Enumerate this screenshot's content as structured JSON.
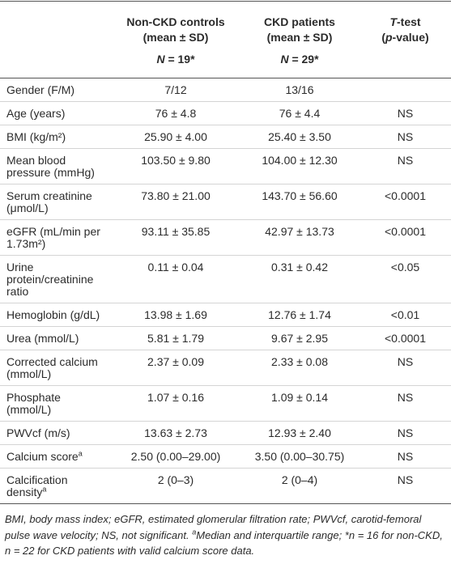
{
  "table": {
    "header": [
      {
        "lines": []
      },
      {
        "lines": [
          [
            {
              "t": "Non-CKD controls"
            }
          ],
          [
            {
              "t": "(mean ± SD)"
            }
          ],
          [
            {
              "t": "N",
              "i": true
            },
            {
              "t": " = 19*"
            }
          ]
        ]
      },
      {
        "lines": [
          [
            {
              "t": "CKD patients"
            }
          ],
          [
            {
              "t": "(mean ± SD)"
            }
          ],
          [
            {
              "t": "N",
              "i": true
            },
            {
              "t": " = 29*"
            }
          ]
        ]
      },
      {
        "lines": [
          [
            {
              "t": "T",
              "i": true
            },
            {
              "t": "-test"
            }
          ],
          [
            {
              "t": "("
            },
            {
              "t": "p",
              "i": true
            },
            {
              "t": "-value)"
            }
          ]
        ]
      }
    ],
    "rows": [
      {
        "label": "Gender (F/M)",
        "cells": [
          "7/12",
          "13/16"
        ]
      },
      {
        "label": "Age (years)",
        "cells": [
          "76 ± 4.8",
          "76 ± 4.4",
          "NS"
        ]
      },
      {
        "label": "BMI (kg/m²)",
        "cells": [
          "25.90 ± 4.00",
          "25.40 ± 3.50",
          "NS"
        ]
      },
      {
        "label": "Mean blood pressure (mmHg)",
        "cells": [
          "103.50 ± 9.80",
          "104.00 ± 12.30",
          "NS"
        ]
      },
      {
        "label": "Serum creatinine (μmol/L)",
        "cells": [
          "73.80 ± 21.00",
          "143.70 ± 56.60",
          "<0.0001"
        ]
      },
      {
        "label": "eGFR (mL/min per 1.73m²)",
        "cells": [
          "93.11 ± 35.85",
          "42.97 ± 13.73",
          "<0.0001"
        ]
      },
      {
        "label": "Urine protein/creatinine ratio",
        "cells": [
          "0.11 ± 0.04",
          "0.31 ± 0.42",
          "<0.05"
        ]
      },
      {
        "label": "Hemoglobin (g/dL)",
        "cells": [
          "13.98 ± 1.69",
          "12.76 ± 1.74",
          "<0.01"
        ]
      },
      {
        "label": "Urea (mmol/L)",
        "cells": [
          "5.81 ± 1.79",
          "9.67 ± 2.95",
          "<0.0001"
        ]
      },
      {
        "label": "Corrected calcium (mmol/L)",
        "cells": [
          "2.37 ± 0.09",
          "2.33 ± 0.08",
          "NS"
        ]
      },
      {
        "label": "Phosphate (mmol/L)",
        "cells": [
          "1.07 ± 0.16",
          "1.09 ± 0.14",
          "NS"
        ]
      },
      {
        "label": "PWVcf (m/s)",
        "cells": [
          "13.63 ± 2.73",
          "12.93 ± 2.40",
          "NS"
        ]
      },
      {
        "label": "Calcium score",
        "sup": "a",
        "cells": [
          "2.50 (0.00–29.00)",
          "3.50 (0.00–30.75)",
          "NS"
        ]
      },
      {
        "label": "Calcification density",
        "sup": "a",
        "cells": [
          "2 (0–3)",
          "2 (0–4)",
          "NS"
        ]
      }
    ]
  },
  "footnote": [
    {
      "t": "BMI, body mass index; eGFR, estimated glomerular filtration rate; PWVcf, carotid-femoral pulse wave velocity; NS, not significant. "
    },
    {
      "t": "a",
      "sup": true
    },
    {
      "t": "Median and interquartile range; *n = 16 for non-CKD, n = 22 for CKD patients with valid calcium score data."
    }
  ]
}
